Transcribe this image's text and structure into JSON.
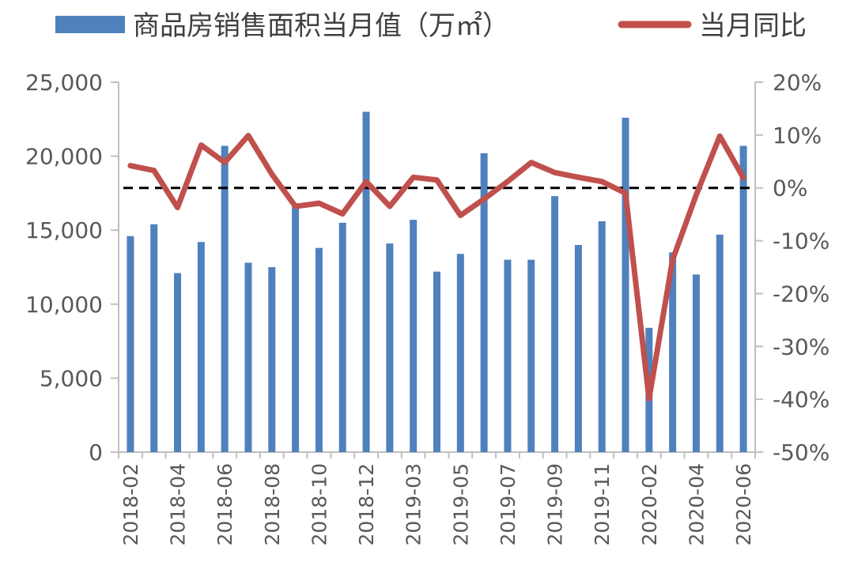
{
  "chart_data": {
    "type": "bar",
    "title": "",
    "categories": [
      "2018-02",
      "2018-03",
      "2018-04",
      "2018-05",
      "2018-06",
      "2018-07",
      "2018-08",
      "2018-09",
      "2018-10",
      "2018-11",
      "2018-12",
      "2019-01",
      "2019-03",
      "2019-04",
      "2019-05",
      "2019-06",
      "2019-07",
      "2019-08",
      "2019-09",
      "2019-10",
      "2019-11",
      "2019-12",
      "2020-02",
      "2020-03",
      "2020-04",
      "2020-05",
      "2020-06"
    ],
    "x_tick_labels": [
      "2018-02",
      "2018-04",
      "2018-06",
      "2018-08",
      "2018-10",
      "2018-12",
      "2019-03",
      "2019-05",
      "2019-07",
      "2019-09",
      "2019-11",
      "2020-02",
      "2020-04",
      "2020-06"
    ],
    "series": [
      {
        "name": "商品房销售面积当月值（万㎡）",
        "type": "bar",
        "axis": "left",
        "color": "#4F81BD",
        "values": [
          14600,
          15400,
          12100,
          14200,
          20700,
          12800,
          12500,
          16600,
          13800,
          15500,
          23000,
          14100,
          15700,
          12200,
          13400,
          20200,
          13000,
          13000,
          17300,
          14000,
          15600,
          22600,
          8400,
          13500,
          12000,
          14700,
          20700
        ]
      },
      {
        "name": "当月同比",
        "type": "line",
        "axis": "right",
        "color": "#C0504D",
        "values": [
          4.2,
          3.3,
          -3.7,
          8.1,
          4.8,
          9.9,
          2.6,
          -3.5,
          -2.9,
          -4.9,
          1.2,
          -3.5,
          2.0,
          1.5,
          -5.2,
          -2.1,
          1.2,
          4.8,
          2.9,
          2.0,
          1.2,
          -1.0,
          -39.9,
          -13.6,
          -1.3,
          9.8,
          1.9
        ]
      }
    ],
    "reference_line": {
      "axis": "right",
      "value": 0,
      "style": "dashed",
      "color": "#000000"
    },
    "y_left": {
      "min": 0,
      "max": 25000,
      "ticks": [
        "0",
        "5,000",
        "10,000",
        "15,000",
        "20,000",
        "25,000"
      ],
      "tick_values": [
        0,
        5000,
        10000,
        15000,
        20000,
        25000
      ]
    },
    "y_right": {
      "min": -50,
      "max": 20,
      "ticks": [
        "-50%",
        "-40%",
        "-30%",
        "-20%",
        "-10%",
        "0%",
        "10%",
        "20%"
      ],
      "tick_values": [
        -50,
        -40,
        -30,
        -20,
        -10,
        0,
        10,
        20
      ]
    },
    "xlabel": "",
    "ylabel": "",
    "grid": false,
    "legend_position": "top",
    "colors": {
      "axis": "#BFBFBF",
      "text": "#595959"
    }
  }
}
